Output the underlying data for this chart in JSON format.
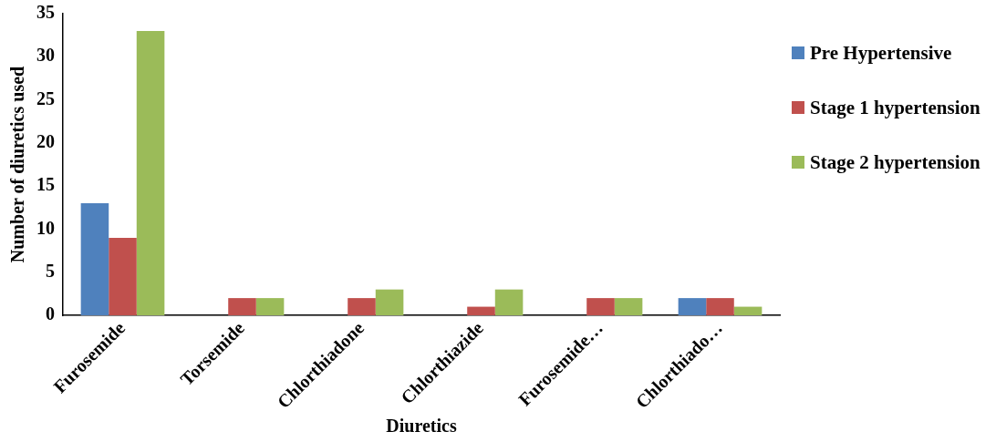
{
  "chart_data": {
    "type": "bar",
    "xlabel": "Diuretics",
    "ylabel": "Number of diuretics used",
    "categories": [
      "Furosemide",
      "Torsemide",
      "Chlorthiadone",
      "Chlorthiazide",
      "Furosemide…",
      "Chlorthiado…"
    ],
    "series": [
      {
        "name": "Pre Hypertensive",
        "color": "#4f81bd",
        "values": [
          13,
          0,
          0,
          0,
          0,
          2
        ]
      },
      {
        "name": "Stage 1 hypertension",
        "color": "#c0504d",
        "values": [
          9,
          2,
          2,
          1,
          2,
          2
        ]
      },
      {
        "name": "Stage 2 hypertension",
        "color": "#9bbb59",
        "values": [
          33,
          2,
          3,
          3,
          2,
          1
        ]
      }
    ],
    "ylim": [
      0,
      35
    ],
    "yticks": [
      0,
      5,
      10,
      15,
      20,
      25,
      30,
      35
    ],
    "grid": false,
    "legend": "right"
  }
}
